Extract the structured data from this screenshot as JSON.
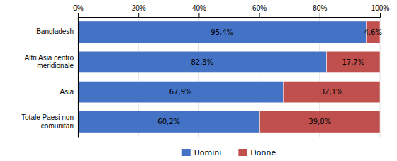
{
  "chart_data": {
    "type": "bar",
    "orientation": "horizontal",
    "stacked": true,
    "categories": [
      "Bangladesh",
      "Altri Asia centro\nmeridionale",
      "Asia",
      "Totale Paesi non\ncomunitari"
    ],
    "series": [
      {
        "name": "Uomini",
        "color": "#4472C4",
        "values": [
          95.4,
          82.3,
          67.9,
          60.2
        ],
        "value_labels": [
          "95,4%",
          "82,3%",
          "67,9%",
          "60,2%"
        ]
      },
      {
        "name": "Donne",
        "color": "#C0504D",
        "values": [
          4.6,
          17.7,
          32.1,
          39.8
        ],
        "value_labels": [
          "4,6%",
          "17,7%",
          "32,1%",
          "39,8%"
        ]
      }
    ],
    "xlim": [
      0,
      100
    ],
    "xticks": [
      {
        "value": 0,
        "label": "0%"
      },
      {
        "value": 20,
        "label": "20%"
      },
      {
        "value": 40,
        "label": "40%"
      },
      {
        "value": 60,
        "label": "60%"
      },
      {
        "value": 80,
        "label": "80%"
      },
      {
        "value": 100,
        "label": "100%"
      }
    ],
    "grid": true,
    "legend": "bottom",
    "data_labels": true
  }
}
